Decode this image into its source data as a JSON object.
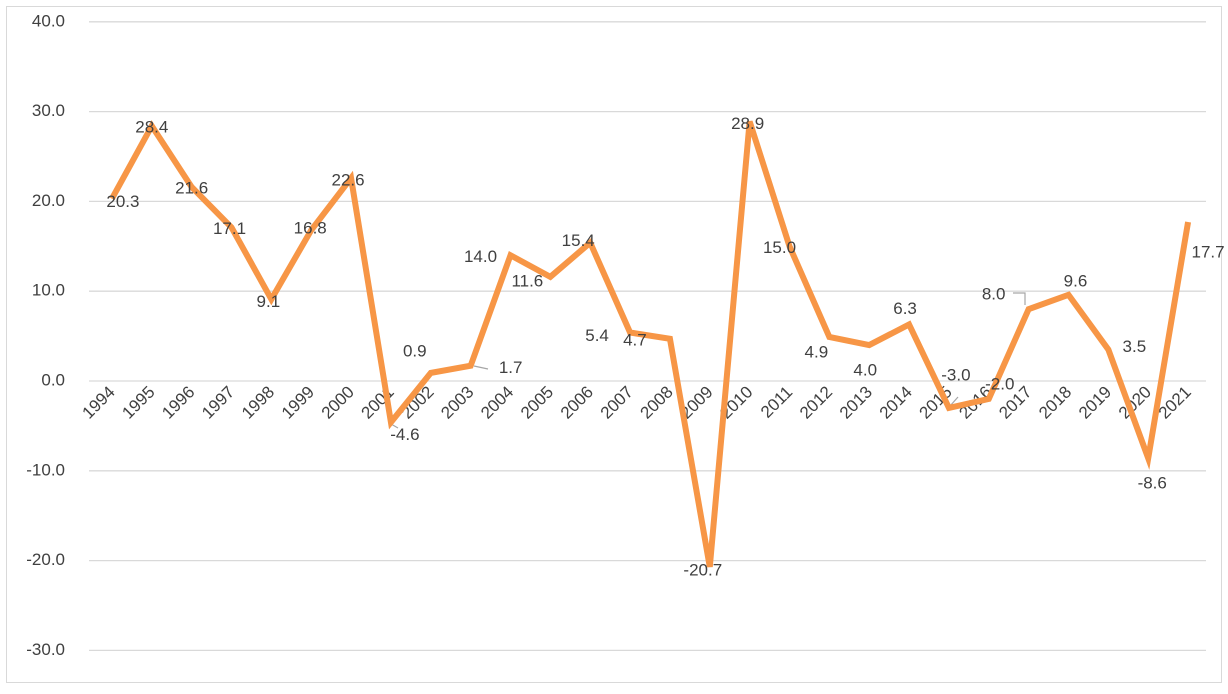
{
  "chart_data": {
    "type": "line",
    "title": "",
    "xlabel": "",
    "ylabel": "",
    "ylim": [
      -30,
      40
    ],
    "yticks": [
      40,
      30,
      20,
      10,
      0,
      -10,
      -20,
      -30
    ],
    "ytick_labels": [
      "40.0",
      "30.0",
      "20.0",
      "10.0",
      "0.0",
      "-10.0",
      "-20.0",
      "-30.0"
    ],
    "grid": true,
    "legend": "none",
    "categories": [
      "1994",
      "1995",
      "1996",
      "1997",
      "1998",
      "1999",
      "2000",
      "2001",
      "2002",
      "2003",
      "2004",
      "2005",
      "2006",
      "2007",
      "2008",
      "2009",
      "2010",
      "2011",
      "2012",
      "2013",
      "2014",
      "2015",
      "2016",
      "2017",
      "2018",
      "2019",
      "2020",
      "2021"
    ],
    "series": [
      {
        "name": "",
        "color": "#F79646",
        "values": [
          20.3,
          28.4,
          21.6,
          17.1,
          9.1,
          16.8,
          22.6,
          -4.6,
          0.9,
          1.7,
          14.0,
          11.6,
          15.4,
          5.4,
          4.7,
          -20.7,
          28.9,
          15.0,
          4.9,
          4.0,
          6.3,
          -3.0,
          -2.0,
          8.0,
          9.6,
          3.5,
          -8.6,
          17.7
        ],
        "data_labels": [
          "20.3",
          "28.4",
          "21.6",
          "17.1",
          "9.1",
          "16.8",
          "22.6",
          "-4.6",
          "0.9",
          "1.7",
          "14.0",
          "11.6",
          "15.4",
          "5.4",
          "4.7",
          "-20.7",
          "28.9",
          "15.0",
          "4.9",
          "4.0",
          "6.3",
          "-3.0",
          "-2.0",
          "8.0",
          "9.6",
          "3.5",
          "-8.6",
          "17.7"
        ]
      }
    ]
  }
}
